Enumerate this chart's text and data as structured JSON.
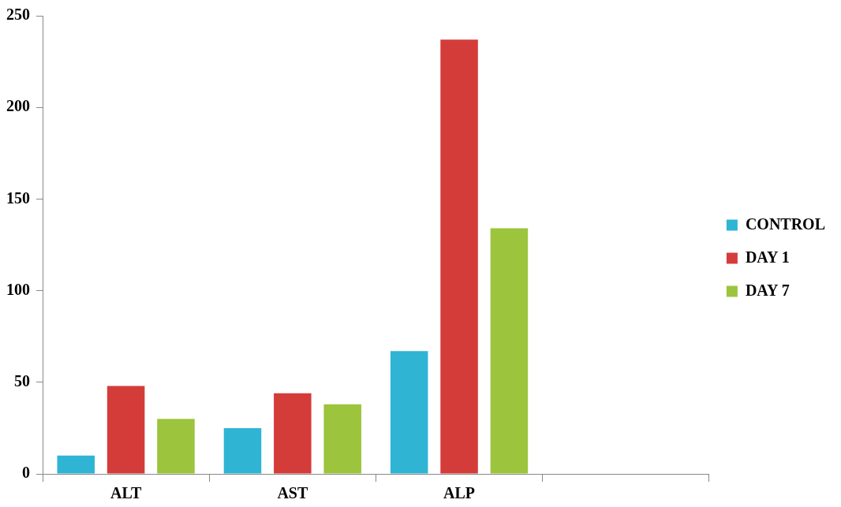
{
  "chart_data": {
    "type": "bar",
    "categories": [
      "ALT",
      "AST",
      "ALP",
      null
    ],
    "series": [
      {
        "name": "CONTROL",
        "color": "#2fb4d4",
        "values": [
          10,
          25,
          67,
          null
        ]
      },
      {
        "name": "DAY 1",
        "color": "#d43c3a",
        "values": [
          48,
          44,
          237,
          null
        ]
      },
      {
        "name": "DAY 7",
        "color": "#9cc43c",
        "values": [
          30,
          38,
          134,
          null
        ]
      }
    ],
    "ylim": [
      0,
      250
    ],
    "yticks": [
      0,
      50,
      100,
      150,
      200,
      250
    ],
    "grid": false,
    "legend": "right"
  }
}
